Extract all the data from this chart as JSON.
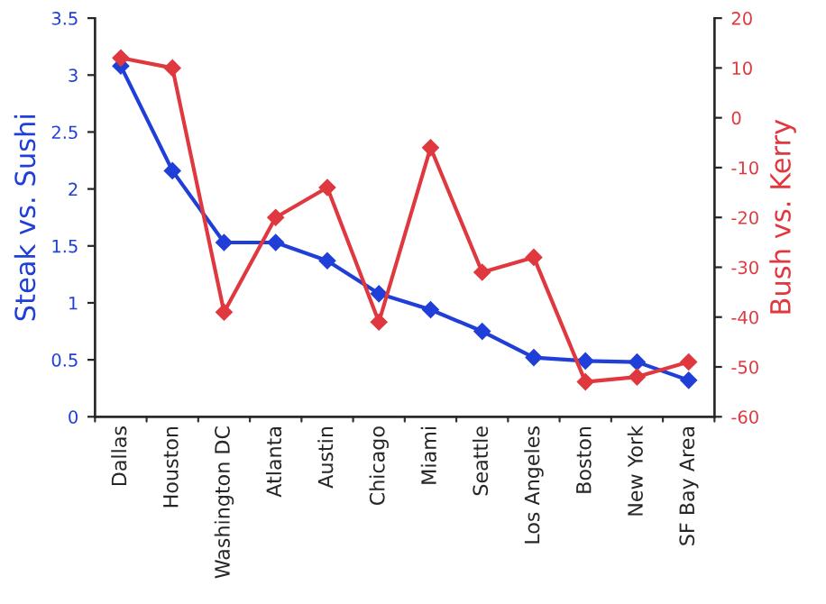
{
  "chart_data": {
    "type": "line",
    "ylabel": "Steak vs. Sushi",
    "y2label": "Bush vs. Kerry",
    "categories": [
      "Dallas",
      "Houston",
      "Washington DC",
      "Atlanta",
      "Austin",
      "Chicago",
      "Miami",
      "Seattle",
      "Los Angeles",
      "Boston",
      "New York",
      "SF Bay Area"
    ],
    "series": [
      {
        "color": "#1f3fd8",
        "values": [
          3.08,
          2.16,
          1.53,
          1.53,
          1.37,
          1.08,
          0.94,
          0.75,
          0.52,
          0.49,
          0.48,
          0.32
        ]
      },
      {
        "color": "#e0383f",
        "axis": "y2",
        "values": [
          12,
          10,
          -39,
          -20,
          -14,
          -41,
          -6,
          -31,
          -28,
          -53,
          -52,
          -49
        ]
      }
    ],
    "ylim": [
      0,
      3.5
    ],
    "yticks": [
      0,
      0.5,
      1,
      1.5,
      2,
      2.5,
      3,
      3.5
    ],
    "y2lim": [
      -60,
      20
    ],
    "y2ticks": [
      -60,
      -50,
      -40,
      -30,
      -20,
      -10,
      0,
      10,
      20
    ],
    "marker": "diamond",
    "line_style": "solid",
    "grid": false,
    "legend": false
  }
}
